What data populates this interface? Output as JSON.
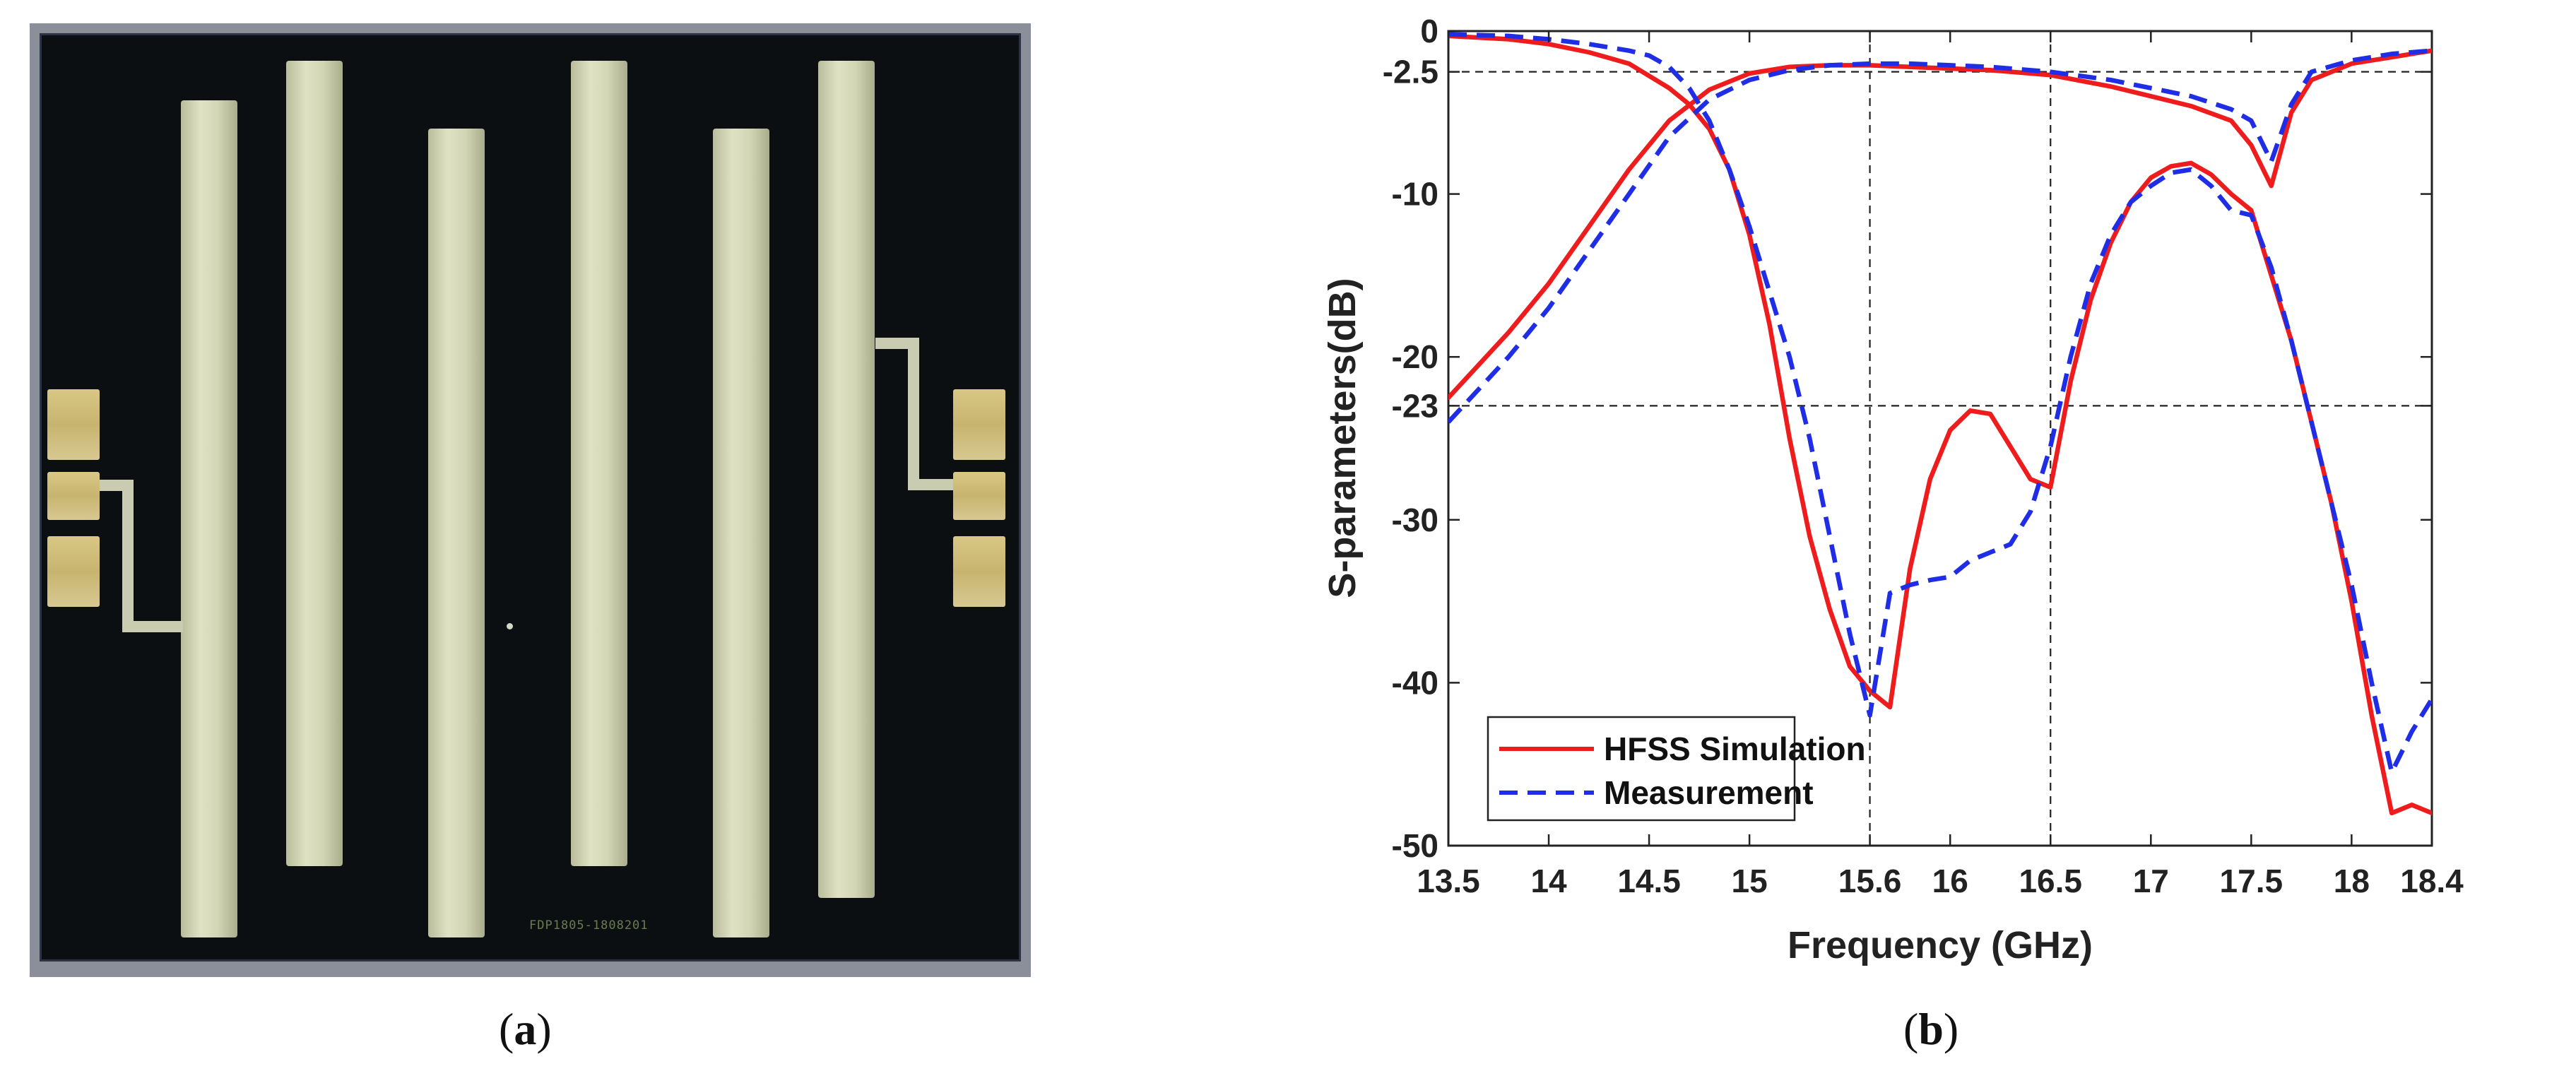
{
  "panel_a": {
    "caption_letter": "a",
    "chip_marking": "FDP1805-1808201"
  },
  "panel_b": {
    "caption_letter": "b"
  },
  "colors": {
    "hfss": "#ee1c1c",
    "measurement": "#1f2ee6",
    "reference": "#222222"
  },
  "chart_data": {
    "type": "line",
    "xlabel": "Frequency (GHz)",
    "ylabel": "S-parameters(dB)",
    "xlim": [
      13.5,
      18.4
    ],
    "ylim": [
      -50,
      0
    ],
    "xticks": [
      13.5,
      14,
      14.5,
      15,
      15.6,
      16,
      16.5,
      17,
      17.5,
      18,
      18.4
    ],
    "xtick_labels": [
      "13.5",
      "14",
      "14.5",
      "15",
      "15.6",
      "16",
      "16.5",
      "17",
      "17.5",
      "18",
      "18.4"
    ],
    "yticks": [
      0,
      -2.5,
      -10,
      -20,
      -23,
      -30,
      -40,
      -50
    ],
    "ytick_labels": [
      "0",
      "-2.5",
      "-10",
      "-20",
      "-23",
      "-30",
      "-40",
      "-50"
    ],
    "grid": false,
    "legend_position": "bottom-left",
    "reference_lines": {
      "y": [
        -2.5,
        -23
      ],
      "x": [
        15.6,
        16.5
      ]
    },
    "series": [
      {
        "name": "HFSS Simulation",
        "style": "solid",
        "curves": [
          {
            "x": [
              13.5,
              13.8,
              14.0,
              14.2,
              14.4,
              14.6,
              14.8,
              15.0,
              15.2,
              15.4,
              15.6,
              15.8,
              16.0,
              16.2,
              16.5,
              16.8,
              17.0,
              17.2,
              17.4,
              17.5,
              17.6,
              17.7,
              17.8,
              18.0,
              18.2,
              18.4
            ],
            "y": [
              -22.5,
              -18.5,
              -15.5,
              -12.0,
              -8.5,
              -5.5,
              -3.6,
              -2.6,
              -2.2,
              -2.1,
              -2.1,
              -2.2,
              -2.3,
              -2.4,
              -2.7,
              -3.4,
              -4.0,
              -4.6,
              -5.5,
              -7.0,
              -9.5,
              -5.0,
              -3.0,
              -2.0,
              -1.6,
              -1.2
            ]
          },
          {
            "x": [
              13.5,
              13.8,
              14.0,
              14.2,
              14.4,
              14.6,
              14.7,
              14.8,
              14.9,
              15.0,
              15.1,
              15.2,
              15.3,
              15.4,
              15.5,
              15.6,
              15.7,
              15.8,
              15.9,
              16.0,
              16.1,
              16.2,
              16.3,
              16.4,
              16.5,
              16.6,
              16.7,
              16.8,
              16.9,
              17.0,
              17.1,
              17.2,
              17.3,
              17.4,
              17.5,
              17.6,
              17.7,
              17.8,
              17.9,
              18.0,
              18.1,
              18.2,
              18.3,
              18.4
            ],
            "y": [
              -0.3,
              -0.5,
              -0.8,
              -1.3,
              -2.0,
              -3.5,
              -4.5,
              -6.0,
              -8.5,
              -12.5,
              -18.0,
              -25.0,
              -31.0,
              -35.5,
              -39.0,
              -40.5,
              -41.5,
              -33.0,
              -27.5,
              -24.5,
              -23.3,
              -23.5,
              -25.5,
              -27.5,
              -28.0,
              -21.5,
              -16.5,
              -13.0,
              -10.5,
              -9.0,
              -8.3,
              -8.1,
              -8.8,
              -10.0,
              -11.0,
              -15.0,
              -19.0,
              -24.0,
              -29.0,
              -35.0,
              -42.0,
              -48.0,
              -47.5,
              -48.0
            ]
          }
        ]
      },
      {
        "name": "Measurement",
        "style": "dashed",
        "curves": [
          {
            "x": [
              13.5,
              13.8,
              14.0,
              14.2,
              14.4,
              14.6,
              14.8,
              15.0,
              15.2,
              15.4,
              15.6,
              15.8,
              16.0,
              16.2,
              16.5,
              16.8,
              17.0,
              17.2,
              17.4,
              17.5,
              17.6,
              17.7,
              17.8,
              18.0,
              18.2,
              18.4
            ],
            "y": [
              -24.0,
              -20.0,
              -17.0,
              -13.5,
              -10.0,
              -6.5,
              -4.2,
              -3.0,
              -2.4,
              -2.1,
              -2.0,
              -2.0,
              -2.1,
              -2.2,
              -2.5,
              -3.0,
              -3.5,
              -4.0,
              -4.8,
              -5.5,
              -8.0,
              -4.5,
              -2.5,
              -1.8,
              -1.4,
              -1.2
            ]
          },
          {
            "x": [
              13.5,
              13.8,
              14.0,
              14.2,
              14.4,
              14.5,
              14.6,
              14.7,
              14.8,
              14.9,
              15.0,
              15.1,
              15.2,
              15.3,
              15.4,
              15.5,
              15.6,
              15.7,
              15.8,
              15.9,
              16.0,
              16.1,
              16.2,
              16.3,
              16.4,
              16.5,
              16.6,
              16.7,
              16.8,
              16.9,
              17.0,
              17.1,
              17.2,
              17.3,
              17.4,
              17.5,
              17.6,
              17.7,
              17.8,
              17.9,
              18.0,
              18.1,
              18.2,
              18.3,
              18.4
            ],
            "y": [
              -0.2,
              -0.3,
              -0.5,
              -0.8,
              -1.2,
              -1.5,
              -2.2,
              -3.5,
              -5.5,
              -8.5,
              -12.0,
              -16.0,
              -20.0,
              -25.0,
              -31.0,
              -37.0,
              -42.0,
              -34.5,
              -34.0,
              -33.7,
              -33.5,
              -32.5,
              -32.0,
              -31.5,
              -29.5,
              -25.5,
              -20.0,
              -15.5,
              -12.5,
              -10.5,
              -9.5,
              -8.7,
              -8.5,
              -9.5,
              -11.0,
              -11.3,
              -14.5,
              -19.0,
              -24.0,
              -29.0,
              -34.0,
              -40.0,
              -45.5,
              -43.0,
              -41.0
            ]
          }
        ]
      }
    ]
  }
}
